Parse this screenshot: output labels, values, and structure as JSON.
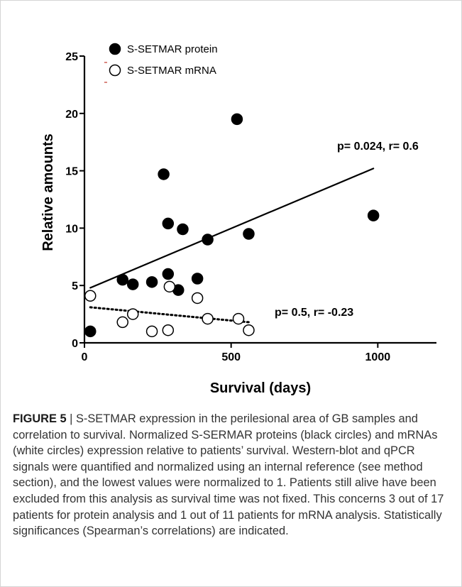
{
  "chart_data": {
    "type": "scatter",
    "xlabel": "Survival (days)",
    "ylabel": "Relative amounts",
    "xlim": [
      0,
      1200
    ],
    "ylim": [
      0,
      25
    ],
    "x_ticks": [
      0,
      500,
      1000
    ],
    "y_ticks": [
      0,
      5,
      10,
      15,
      20,
      25
    ],
    "grid": false,
    "legend_position": "top-left",
    "series": [
      {
        "name": "S-SETMAR protein",
        "marker": "filled-circle",
        "color": "#000000",
        "points": [
          [
            20,
            1.0
          ],
          [
            130,
            5.5
          ],
          [
            165,
            5.1
          ],
          [
            230,
            5.3
          ],
          [
            270,
            14.7
          ],
          [
            285,
            10.4
          ],
          [
            285,
            6.0
          ],
          [
            320,
            4.6
          ],
          [
            335,
            9.9
          ],
          [
            385,
            5.6
          ],
          [
            420,
            9.0
          ],
          [
            520,
            19.5
          ],
          [
            560,
            9.5
          ],
          [
            985,
            11.1
          ]
        ],
        "fit": {
          "style": "solid",
          "x": [
            20,
            985
          ],
          "y": [
            4.8,
            15.2
          ]
        },
        "annotation": "p= 0.024, r= 0.6"
      },
      {
        "name": "S-SETMAR mRNA",
        "marker": "open-circle",
        "color": "#000000",
        "points": [
          [
            20,
            4.1
          ],
          [
            130,
            1.8
          ],
          [
            165,
            2.5
          ],
          [
            230,
            1.0
          ],
          [
            285,
            1.1
          ],
          [
            290,
            4.9
          ],
          [
            385,
            3.9
          ],
          [
            420,
            2.1
          ],
          [
            525,
            2.1
          ],
          [
            560,
            1.1
          ]
        ],
        "fit": {
          "style": "dotted",
          "x": [
            20,
            560
          ],
          "y": [
            3.1,
            1.8
          ]
        },
        "annotation": "p= 0.5, r= -0.23"
      }
    ]
  },
  "caption": {
    "label": "FIGURE 5",
    "separator": " | ",
    "text": "S-SETMAR expression in the perilesional area of GB samples and correlation to survival. Normalized S-SERMAR proteins (black circles) and mRNAs (white circles) expression relative to patients’ survival. Western-blot and qPCR signals were quantified and normalized using an internal reference (see method section), and the lowest values were normalized to 1. Patients still alive have been excluded from this analysis as survival time was not fixed. This concerns 3 out of 17 patients for protein analysis and 1 out of 11 patients for mRNA analysis. Statistically significances (Spearman’s correlations) are indicated."
  }
}
